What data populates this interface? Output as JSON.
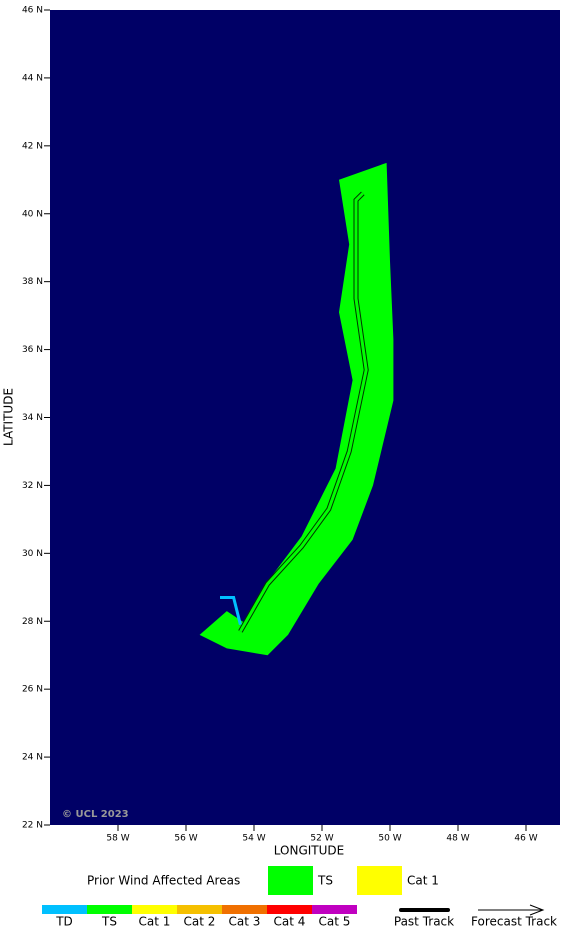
{
  "chart_data": {
    "type": "map",
    "x_label": "LONGITUDE",
    "y_label": "LATITUDE",
    "credit": "© UCL 2023",
    "background": "#000066",
    "xlim": [
      -60,
      -45
    ],
    "ylim": [
      22,
      46
    ],
    "xticks": [
      {
        "value": -58,
        "label": "58 W"
      },
      {
        "value": -56,
        "label": "56 W"
      },
      {
        "value": -54,
        "label": "54 W"
      },
      {
        "value": -52,
        "label": "52 W"
      },
      {
        "value": -50,
        "label": "50 W"
      },
      {
        "value": -48,
        "label": "48 W"
      },
      {
        "value": -46,
        "label": "46 W"
      }
    ],
    "yticks": [
      {
        "value": 22,
        "label": "22 N"
      },
      {
        "value": 24,
        "label": "24 N"
      },
      {
        "value": 26,
        "label": "26 N"
      },
      {
        "value": 28,
        "label": "28 N"
      },
      {
        "value": 30,
        "label": "30 N"
      },
      {
        "value": 32,
        "label": "32 N"
      },
      {
        "value": 34,
        "label": "34 N"
      },
      {
        "value": 36,
        "label": "36 N"
      },
      {
        "value": 38,
        "label": "38 N"
      },
      {
        "value": 40,
        "label": "40 N"
      },
      {
        "value": 42,
        "label": "42 N"
      },
      {
        "value": 44,
        "label": "44 N"
      },
      {
        "value": 46,
        "label": "46 N"
      }
    ],
    "swath": {
      "color": "#00ff00",
      "lon": [
        -51.5,
        -50.1,
        -50.0,
        -49.9,
        -49.9,
        -50.5,
        -51.1,
        -52.1,
        -53.0,
        -53.6,
        -54.8,
        -55.6,
        -54.8,
        -54.2,
        -53.5,
        -52.6,
        -51.6,
        -51.1,
        -51.5,
        -51.2
      ],
      "lat": [
        41.0,
        41.5,
        38.6,
        36.3,
        34.5,
        32.0,
        30.4,
        29.1,
        27.6,
        27.0,
        27.2,
        27.6,
        28.3,
        27.9,
        29.3,
        30.5,
        32.5,
        35.1,
        37.1,
        39.1
      ]
    },
    "track": {
      "lon": [
        -54.4,
        -53.6,
        -52.6,
        -51.8,
        -51.2,
        -50.7,
        -51.0,
        -51.0,
        -50.8
      ],
      "lat": [
        27.7,
        29.1,
        30.2,
        31.3,
        33.0,
        35.4,
        37.5,
        40.4,
        40.6
      ]
    },
    "past_track": {
      "color": "#00c0ff",
      "lon": [
        -55.0,
        -54.6,
        -54.4
      ],
      "lat": [
        28.7,
        28.7,
        27.9
      ]
    },
    "legend": {
      "title": "Prior Wind Affected Areas",
      "items": [
        {
          "label": "TS",
          "color": "#00ff00"
        },
        {
          "label": "Cat 1",
          "color": "#ffff00"
        }
      ]
    },
    "colorbar": {
      "labels": [
        "TD",
        "TS",
        "Cat 1",
        "Cat 2",
        "Cat 3",
        "Cat 4",
        "Cat 5"
      ],
      "colors": [
        "#00c0ff",
        "#00ff00",
        "#ffff00",
        "#f5c000",
        "#f07000",
        "#ff0000",
        "#c000c0"
      ]
    },
    "track_legend": [
      "Past Track",
      "Forecast Track"
    ]
  }
}
